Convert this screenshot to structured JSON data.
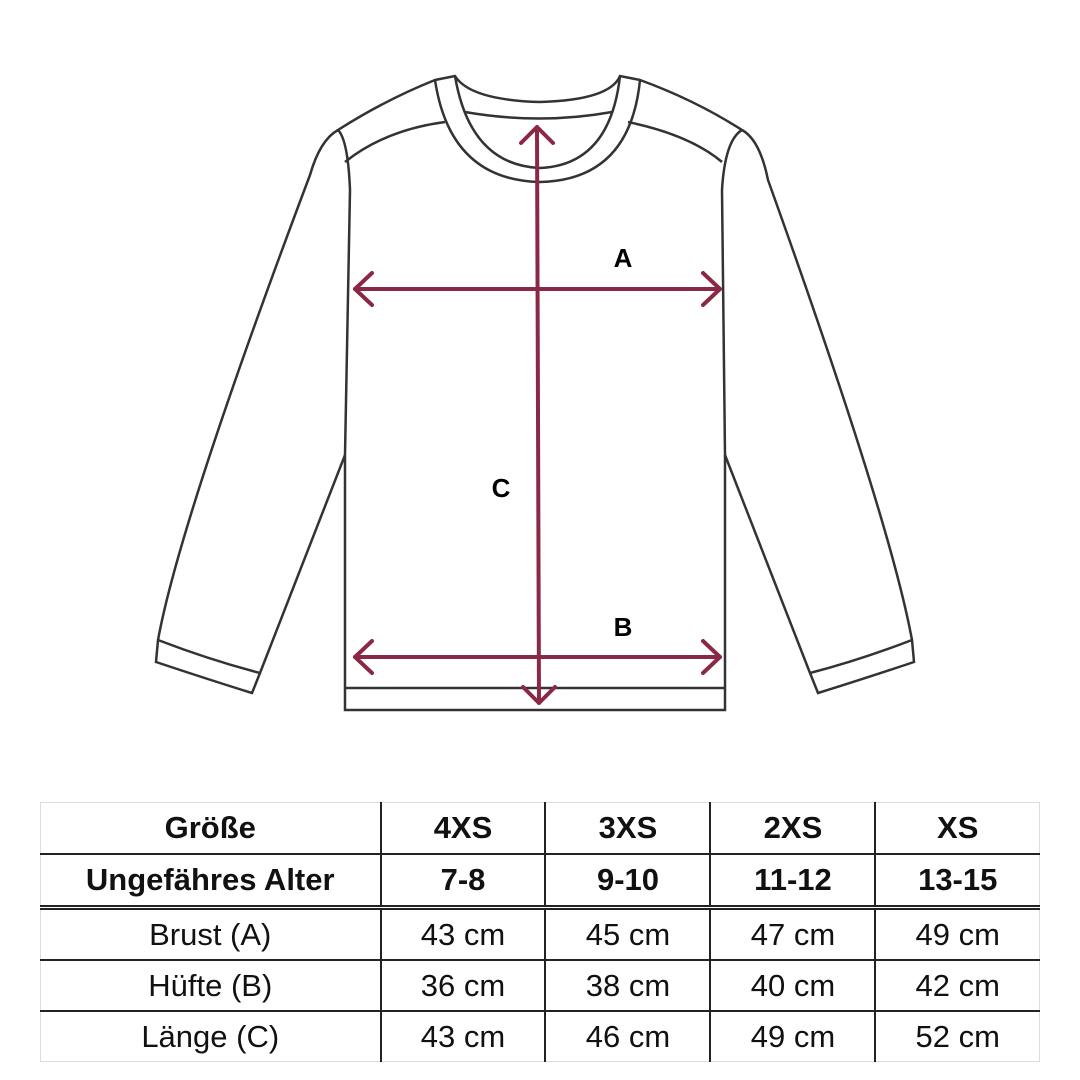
{
  "diagram": {
    "labels": {
      "a": "A",
      "b": "B",
      "c": "C"
    },
    "arrow_color": "#8b2846",
    "outline_color": "#333333"
  },
  "table": {
    "header": {
      "size_label": "Größe",
      "sizes": [
        "4XS",
        "3XS",
        "2XS",
        "XS"
      ],
      "age_label": "Ungefähres Alter",
      "ages": [
        "7-8",
        "9-10",
        "11-12",
        "13-15"
      ]
    },
    "rows": [
      {
        "label": "Brust (A)",
        "values": [
          "43 cm",
          "45 cm",
          "47 cm",
          "49 cm"
        ]
      },
      {
        "label": "Hüfte (B)",
        "values": [
          "36 cm",
          "38 cm",
          "40 cm",
          "42 cm"
        ]
      },
      {
        "label": "Länge (C)",
        "values": [
          "43 cm",
          "46 cm",
          "49 cm",
          "52 cm"
        ]
      }
    ]
  }
}
